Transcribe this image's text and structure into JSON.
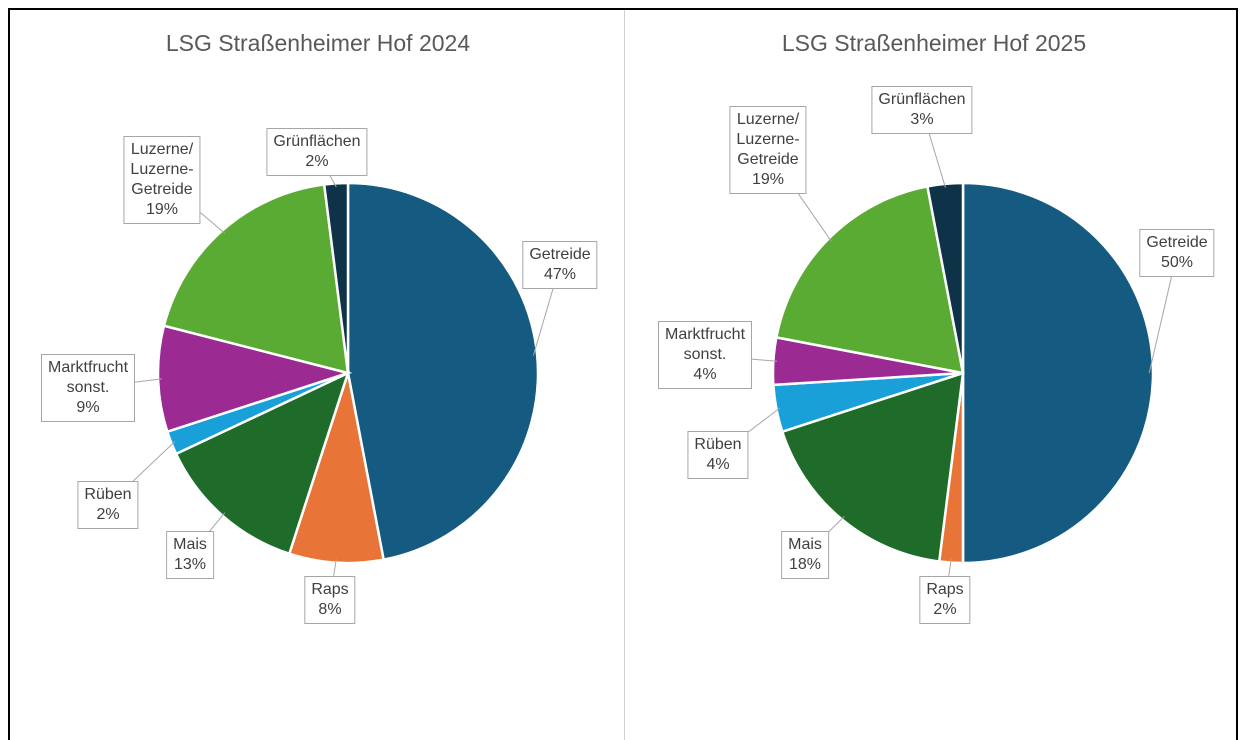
{
  "chart_data": [
    {
      "type": "pie",
      "title": "LSG Straßenheimer Hof 2024",
      "categories": [
        "Getreide",
        "Raps",
        "Mais",
        "Rüben",
        "Marktfrucht sonst.",
        "Luzerne/ Luzerne-Getreide",
        "Grünflächen"
      ],
      "values": [
        47,
        8,
        13,
        2,
        9,
        19,
        2
      ],
      "value_labels": [
        "47%",
        "8%",
        "13%",
        "2%",
        "9%",
        "19%",
        "2%"
      ],
      "colors": [
        "#155a80",
        "#e87537",
        "#1e6b2a",
        "#1aa0d8",
        "#9b2a92",
        "#5aab33",
        "#0e3348"
      ]
    },
    {
      "type": "pie",
      "title": "LSG Straßenheimer Hof 2025",
      "categories": [
        "Getreide",
        "Raps",
        "Mais",
        "Rüben",
        "Marktfrucht sonst.",
        "Luzerne/ Luzerne-Getreide",
        "Grünflächen"
      ],
      "values": [
        50,
        2,
        18,
        4,
        4,
        19,
        3
      ],
      "value_labels": [
        "50%",
        "2%",
        "18%",
        "4%",
        "4%",
        "19%",
        "3%"
      ],
      "colors": [
        "#155a80",
        "#e87537",
        "#1e6b2a",
        "#1aa0d8",
        "#9b2a92",
        "#5aab33",
        "#0e3348"
      ]
    }
  ]
}
